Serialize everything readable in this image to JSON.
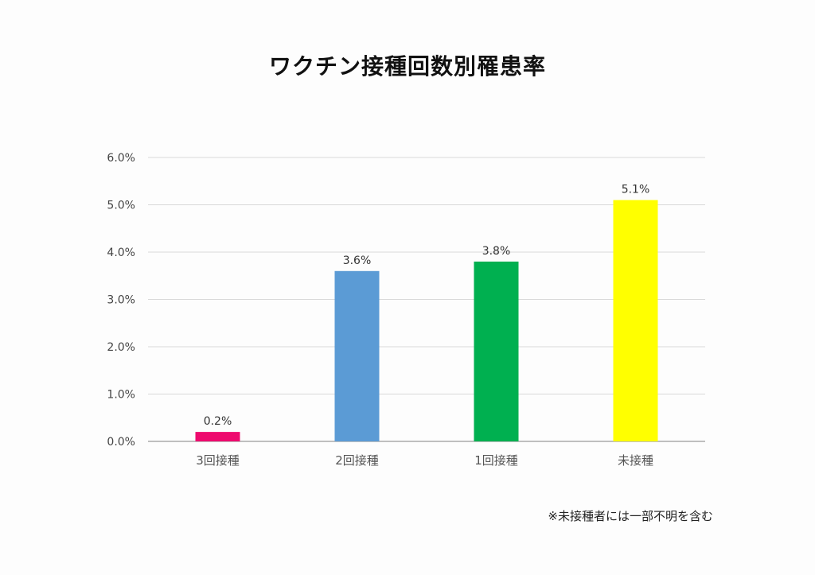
{
  "chart_data": {
    "type": "bar",
    "title": "ワクチン接種回数別罹患率",
    "categories": [
      "3回接種",
      "2回接種",
      "1回接種",
      "未接種"
    ],
    "values": [
      0.2,
      3.6,
      3.8,
      5.1
    ],
    "value_labels": [
      "0.2%",
      "3.6%",
      "3.8%",
      "5.1%"
    ],
    "colors": [
      "#ee0a6e",
      "#5b9bd5",
      "#00b050",
      "#ffff00"
    ],
    "yticks": [
      "0.0%",
      "1.0%",
      "2.0%",
      "3.0%",
      "4.0%",
      "5.0%",
      "6.0%"
    ],
    "ylim": [
      0,
      6
    ],
    "grid": true,
    "legend": "none",
    "note": "※未接種者には一部不明を含む"
  }
}
